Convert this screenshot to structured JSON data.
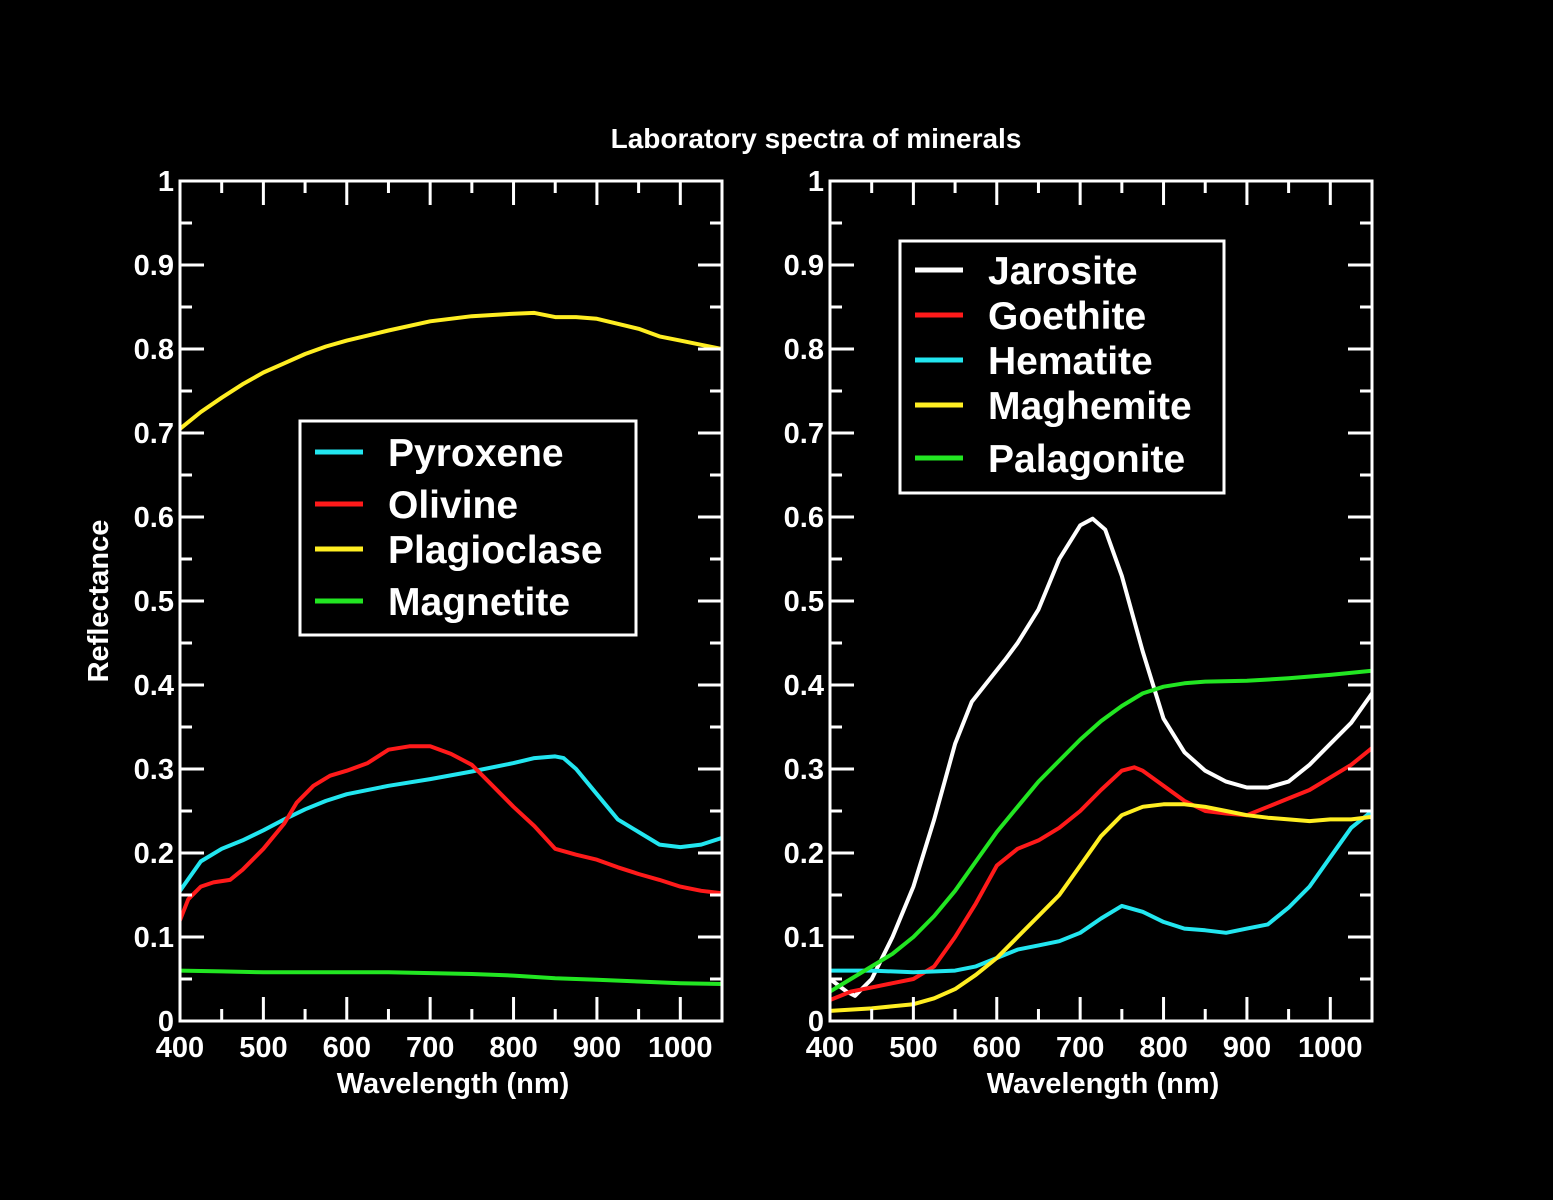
{
  "chart_data": [
    {
      "type": "line",
      "title": "Laboratory spectra of minerals",
      "xlabel": "Wavelength (nm)",
      "ylabel": "Reflectance",
      "xlim": [
        400,
        1050
      ],
      "ylim": [
        0,
        1
      ],
      "xticks": [
        400,
        500,
        600,
        700,
        800,
        900,
        1000
      ],
      "xtick_labels": [
        "400",
        "500",
        "600",
        "700",
        "800",
        "900",
        "1000"
      ],
      "yticks": [
        0,
        0.1,
        0.2,
        0.3,
        0.4,
        0.5,
        0.6,
        0.7,
        0.8,
        0.9,
        1
      ],
      "ytick_labels": [
        "0",
        "0.1",
        "0.2",
        "0.3",
        "0.4",
        "0.5",
        "0.6",
        "0.7",
        "0.8",
        "0.9",
        "1"
      ],
      "grid": false,
      "legend_position": "center",
      "series": [
        {
          "name": "Pyroxene",
          "color": "#22e6f0",
          "x": [
            400,
            425,
            450,
            475,
            500,
            525,
            550,
            575,
            600,
            650,
            700,
            750,
            800,
            825,
            850,
            860,
            875,
            900,
            925,
            950,
            975,
            1000,
            1025,
            1050
          ],
          "y": [
            0.155,
            0.19,
            0.205,
            0.215,
            0.227,
            0.24,
            0.252,
            0.262,
            0.27,
            0.28,
            0.288,
            0.297,
            0.307,
            0.313,
            0.315,
            0.313,
            0.3,
            0.27,
            0.24,
            0.225,
            0.21,
            0.207,
            0.21,
            0.218
          ]
        },
        {
          "name": "Olivine",
          "color": "#ff1a1a",
          "x": [
            400,
            410,
            425,
            440,
            460,
            475,
            500,
            525,
            540,
            560,
            580,
            600,
            625,
            650,
            675,
            700,
            725,
            750,
            775,
            800,
            825,
            850,
            875,
            900,
            925,
            950,
            975,
            1000,
            1025,
            1050
          ],
          "y": [
            0.12,
            0.145,
            0.16,
            0.165,
            0.168,
            0.18,
            0.205,
            0.235,
            0.26,
            0.28,
            0.292,
            0.298,
            0.307,
            0.323,
            0.327,
            0.327,
            0.318,
            0.305,
            0.28,
            0.255,
            0.232,
            0.205,
            0.198,
            0.192,
            0.183,
            0.175,
            0.168,
            0.16,
            0.155,
            0.152
          ]
        },
        {
          "name": "Plagioclase",
          "color": "#ffee22",
          "x": [
            400,
            425,
            450,
            475,
            500,
            525,
            550,
            575,
            600,
            625,
            650,
            700,
            750,
            800,
            825,
            850,
            875,
            900,
            925,
            950,
            975,
            1000,
            1025,
            1050
          ],
          "y": [
            0.705,
            0.725,
            0.742,
            0.758,
            0.772,
            0.783,
            0.794,
            0.803,
            0.81,
            0.816,
            0.822,
            0.833,
            0.839,
            0.842,
            0.843,
            0.838,
            0.838,
            0.836,
            0.83,
            0.824,
            0.815,
            0.81,
            0.805,
            0.8
          ]
        },
        {
          "name": "Magnetite",
          "color": "#22e622",
          "x": [
            400,
            450,
            500,
            550,
            600,
            650,
            700,
            750,
            800,
            850,
            900,
            950,
            1000,
            1050
          ],
          "y": [
            0.06,
            0.059,
            0.058,
            0.058,
            0.058,
            0.058,
            0.057,
            0.056,
            0.054,
            0.051,
            0.049,
            0.047,
            0.045,
            0.044
          ]
        }
      ]
    },
    {
      "type": "line",
      "title": "Laboratory spectra of minerals",
      "xlabel": "Wavelength (nm)",
      "ylabel": "",
      "xlim": [
        400,
        1050
      ],
      "ylim": [
        0,
        1
      ],
      "xticks": [
        400,
        500,
        600,
        700,
        800,
        900,
        1000
      ],
      "xtick_labels": [
        "400",
        "500",
        "600",
        "700",
        "800",
        "900",
        "1000"
      ],
      "yticks": [
        0,
        0.1,
        0.2,
        0.3,
        0.4,
        0.5,
        0.6,
        0.7,
        0.8,
        0.9,
        1
      ],
      "ytick_labels": [
        "0",
        "0.1",
        "0.2",
        "0.3",
        "0.4",
        "0.5",
        "0.6",
        "0.7",
        "0.8",
        "0.9",
        "1"
      ],
      "grid": false,
      "legend_position": "top-left",
      "series": [
        {
          "name": "Jarosite",
          "color": "#ffffff",
          "x": [
            400,
            420,
            430,
            450,
            475,
            500,
            525,
            550,
            570,
            590,
            610,
            625,
            650,
            675,
            700,
            715,
            730,
            750,
            775,
            800,
            825,
            850,
            875,
            900,
            925,
            950,
            975,
            1000,
            1025,
            1050
          ],
          "y": [
            0.05,
            0.035,
            0.03,
            0.05,
            0.1,
            0.16,
            0.24,
            0.33,
            0.38,
            0.405,
            0.43,
            0.45,
            0.49,
            0.55,
            0.59,
            0.598,
            0.585,
            0.53,
            0.44,
            0.36,
            0.32,
            0.298,
            0.285,
            0.278,
            0.278,
            0.285,
            0.305,
            0.33,
            0.355,
            0.39
          ]
        },
        {
          "name": "Goethite",
          "color": "#ff1a1a",
          "x": [
            400,
            425,
            450,
            475,
            500,
            525,
            550,
            575,
            600,
            625,
            650,
            675,
            700,
            725,
            750,
            765,
            775,
            800,
            825,
            850,
            875,
            900,
            925,
            950,
            975,
            1000,
            1025,
            1050
          ],
          "y": [
            0.025,
            0.035,
            0.04,
            0.045,
            0.05,
            0.065,
            0.1,
            0.14,
            0.185,
            0.205,
            0.215,
            0.23,
            0.25,
            0.275,
            0.298,
            0.302,
            0.298,
            0.28,
            0.262,
            0.25,
            0.247,
            0.245,
            0.255,
            0.265,
            0.275,
            0.29,
            0.305,
            0.325
          ]
        },
        {
          "name": "Hematite",
          "color": "#22e6f0",
          "x": [
            400,
            450,
            500,
            550,
            575,
            600,
            625,
            650,
            675,
            700,
            725,
            750,
            775,
            800,
            825,
            850,
            875,
            900,
            925,
            950,
            975,
            1000,
            1025,
            1050
          ],
          "y": [
            0.06,
            0.06,
            0.058,
            0.06,
            0.065,
            0.075,
            0.085,
            0.09,
            0.095,
            0.105,
            0.122,
            0.137,
            0.13,
            0.118,
            0.11,
            0.108,
            0.105,
            0.11,
            0.115,
            0.135,
            0.16,
            0.195,
            0.23,
            0.25
          ]
        },
        {
          "name": "Maghemite",
          "color": "#ffee22",
          "x": [
            400,
            450,
            500,
            525,
            550,
            575,
            600,
            625,
            650,
            675,
            700,
            725,
            750,
            775,
            800,
            825,
            850,
            875,
            900,
            925,
            950,
            975,
            1000,
            1025,
            1050
          ],
          "y": [
            0.012,
            0.015,
            0.02,
            0.027,
            0.038,
            0.055,
            0.075,
            0.1,
            0.125,
            0.15,
            0.185,
            0.22,
            0.245,
            0.255,
            0.258,
            0.258,
            0.255,
            0.25,
            0.245,
            0.242,
            0.24,
            0.238,
            0.24,
            0.24,
            0.243
          ]
        },
        {
          "name": "Palagonite",
          "color": "#22e622",
          "x": [
            400,
            425,
            450,
            475,
            500,
            525,
            550,
            575,
            600,
            625,
            650,
            675,
            700,
            725,
            750,
            775,
            800,
            825,
            850,
            900,
            950,
            1000,
            1050
          ],
          "y": [
            0.035,
            0.05,
            0.065,
            0.08,
            0.1,
            0.125,
            0.155,
            0.19,
            0.225,
            0.255,
            0.285,
            0.31,
            0.335,
            0.357,
            0.375,
            0.39,
            0.398,
            0.402,
            0.404,
            0.405,
            0.408,
            0.412,
            0.417
          ]
        }
      ]
    }
  ]
}
